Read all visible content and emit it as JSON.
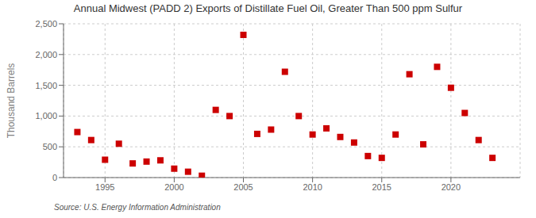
{
  "chart_data": {
    "type": "scatter",
    "title": "Annual Midwest (PADD 2) Exports of Distillate Fuel Oil, Greater Than 500 ppm Sulfur",
    "y_label": "Thousand Barrels",
    "annotations": [
      "Source: U.S. Energy Information Administration"
    ],
    "x": [
      1993,
      1994,
      1995,
      1996,
      1997,
      1998,
      1999,
      2000,
      2001,
      2002,
      2003,
      2004,
      2005,
      2006,
      2007,
      2008,
      2009,
      2010,
      2011,
      2012,
      2013,
      2014,
      2015,
      2016,
      2017,
      2018,
      2019,
      2020,
      2021,
      2022,
      2023
    ],
    "values": [
      740,
      610,
      290,
      550,
      230,
      260,
      280,
      145,
      95,
      30,
      1100,
      1000,
      2320,
      710,
      780,
      1720,
      1000,
      700,
      800,
      660,
      570,
      350,
      320,
      700,
      1680,
      540,
      1800,
      1460,
      1050,
      610,
      320
    ],
    "color": "#cc0000",
    "marker": "square",
    "xlim": [
      1992,
      2025
    ],
    "ylim": [
      0,
      2500
    ],
    "xticks": [
      1995,
      2000,
      2005,
      2010,
      2015,
      2020
    ],
    "yticks": [
      0,
      500,
      {
        "value": 1000,
        "label": "1,000"
      },
      {
        "value": 1500,
        "label": "1,500"
      },
      {
        "value": 2000,
        "label": "2,000"
      },
      {
        "value": 2500,
        "label": "2,500"
      }
    ],
    "grid": true
  }
}
